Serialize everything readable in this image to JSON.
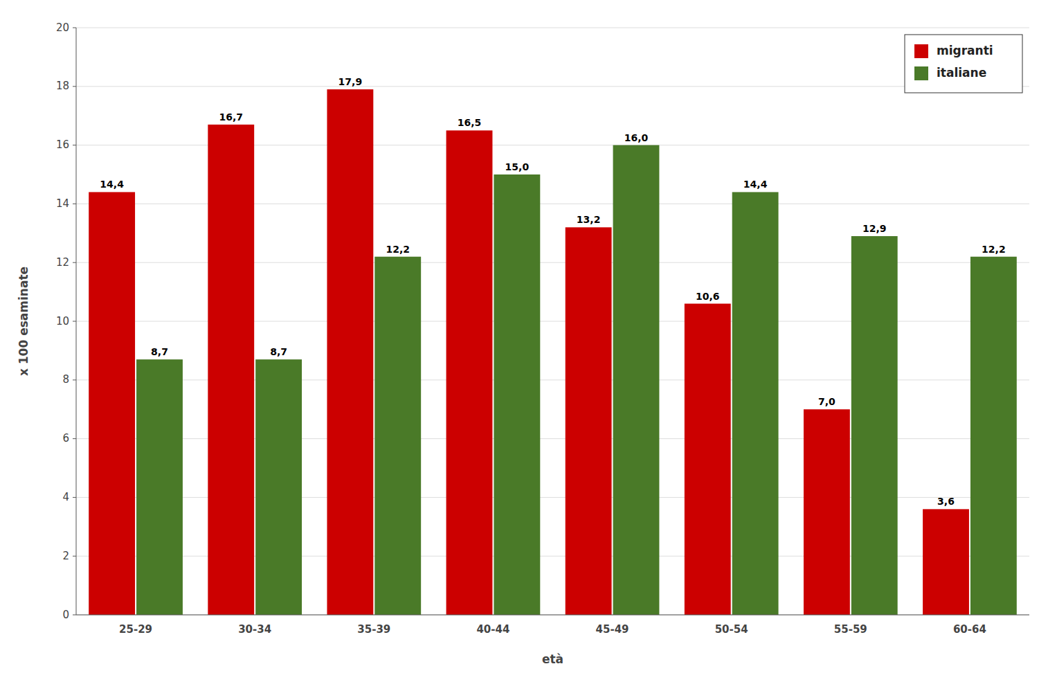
{
  "chart_data": {
    "type": "bar",
    "categories": [
      "25-29",
      "30-34",
      "35-39",
      "40-44",
      "45-49",
      "50-54",
      "55-59",
      "60-64"
    ],
    "series": [
      {
        "name": "migranti",
        "color": "#cc0000",
        "values": [
          14.4,
          16.7,
          17.9,
          16.5,
          13.2,
          10.6,
          7.0,
          3.6
        ],
        "value_labels": [
          "14,4",
          "16,7",
          "17,9",
          "16,5",
          "13,2",
          "10,6",
          "7,0",
          "3,6"
        ]
      },
      {
        "name": "italiane",
        "color": "#4a7a28",
        "values": [
          8.7,
          8.7,
          12.2,
          15.0,
          16.0,
          14.4,
          12.9,
          12.2
        ],
        "value_labels": [
          "8,7",
          "8,7",
          "12,2",
          "15,0",
          "16,0",
          "14,4",
          "12,9",
          "12,2"
        ]
      }
    ],
    "xlabel": "età",
    "ylabel": "x 100 esaminate",
    "ylim": [
      0,
      20
    ],
    "yticks": [
      0,
      2,
      4,
      6,
      8,
      10,
      12,
      14,
      16,
      18,
      20
    ],
    "grid": true,
    "legend": "upper right",
    "data_labels": true
  }
}
